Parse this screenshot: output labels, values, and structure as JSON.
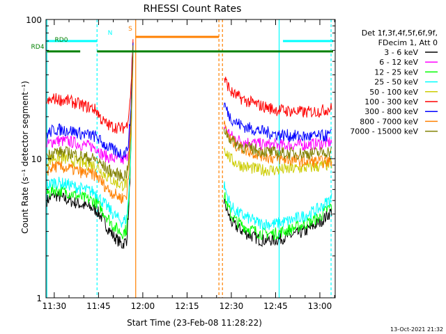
{
  "chart_data": {
    "type": "line",
    "title": "RHESSI Count Rates",
    "xlabel": "Start Time (23-Feb-08 11:28:22)",
    "ylabel": "Count Rate (s⁻¹ detector segment⁻¹)",
    "x_unit": "minutes past 11:00 UT",
    "xlim": [
      87.2,
      185.2
    ],
    "ylim": [
      1,
      100
    ],
    "y_scale": "log",
    "x_ticks": [
      {
        "value": 90,
        "label": "11:30"
      },
      {
        "value": 105,
        "label": "11:45"
      },
      {
        "value": 120,
        "label": "12:00"
      },
      {
        "value": 135,
        "label": "12:15"
      },
      {
        "value": 150,
        "label": "12:30"
      },
      {
        "value": 165,
        "label": "12:45"
      },
      {
        "value": 180,
        "label": "13:00"
      }
    ],
    "y_ticks": [
      {
        "value": 1,
        "label": "1"
      },
      {
        "value": 10,
        "label": "10"
      },
      {
        "value": 100,
        "label": "100"
      }
    ],
    "grid": false,
    "legend": {
      "placement": "right",
      "header": [
        "Det 1f,3f,4f,5f,6f,9f,",
        "FDecim 1, Att 0"
      ]
    },
    "timestamp": "13-Oct-2021 21:32",
    "series": [
      {
        "name": "3 - 6 keV",
        "color": "#000000",
        "x": [
          87.5,
          90,
          95,
          100,
          103,
          104.5,
          106,
          108,
          110,
          113,
          114.5,
          115.3,
          116,
          116.7,
          147.5,
          149,
          150,
          152,
          155,
          160,
          165,
          170,
          175,
          180,
          182,
          184
        ],
        "y": [
          5.0,
          5.5,
          5.0,
          4.6,
          4.4,
          4.2,
          3.8,
          3.2,
          2.8,
          2.4,
          2.6,
          4.5,
          12,
          70,
          5.0,
          4.0,
          3.5,
          3.2,
          2.9,
          2.6,
          2.6,
          2.8,
          3.0,
          3.5,
          3.8,
          4.2
        ]
      },
      {
        "name": "6 - 12 keV",
        "color": "#ff00ff",
        "x": [
          87.5,
          90,
          95,
          100,
          103,
          104.5,
          106,
          108,
          110,
          113,
          114.5,
          115.3,
          116,
          116.7,
          147.5,
          149,
          150,
          152,
          155,
          160,
          165,
          170,
          175,
          180,
          182,
          184
        ],
        "y": [
          12.5,
          13.5,
          13.3,
          12.5,
          12.2,
          12.0,
          10.8,
          10.3,
          10.0,
          9.7,
          10.0,
          12.5,
          20,
          60,
          17.0,
          15.5,
          14.5,
          13.7,
          13.2,
          12.7,
          12.5,
          12.5,
          12.6,
          12.8,
          13.0,
          13.2
        ]
      },
      {
        "name": "12 - 25 keV",
        "color": "#00ff00",
        "x": [
          87.5,
          90,
          95,
          100,
          103,
          104.5,
          106,
          108,
          110,
          113,
          114.5,
          115.3,
          116,
          116.7,
          147.5,
          149,
          150,
          152,
          155,
          160,
          165,
          170,
          175,
          180,
          182,
          184
        ],
        "y": [
          5.6,
          6.0,
          5.7,
          5.2,
          5.0,
          4.8,
          4.3,
          3.8,
          3.3,
          2.9,
          3.1,
          5.0,
          13,
          65,
          5.5,
          4.4,
          3.9,
          3.5,
          3.2,
          2.9,
          2.9,
          3.1,
          3.4,
          3.8,
          4.2,
          4.6
        ]
      },
      {
        "name": "25 - 50 keV",
        "color": "#00ffff",
        "x": [
          87.5,
          90,
          95,
          100,
          103,
          104.5,
          106,
          108,
          110,
          113,
          114.5,
          115.3,
          116,
          116.7,
          147.5,
          149,
          150,
          152,
          155,
          160,
          165,
          170,
          175,
          180,
          182,
          184
        ],
        "y": [
          6.4,
          6.8,
          6.5,
          6.0,
          5.8,
          5.6,
          5.0,
          4.5,
          4.0,
          3.5,
          3.7,
          5.7,
          14,
          62,
          6.5,
          5.1,
          4.5,
          4.1,
          3.8,
          3.4,
          3.4,
          3.6,
          3.9,
          4.4,
          4.8,
          5.2
        ]
      },
      {
        "name": "50 - 100 keV",
        "color": "#cccc00",
        "x": [
          87.5,
          90,
          95,
          100,
          103,
          104.5,
          106,
          108,
          110,
          113,
          114.5,
          115.3,
          116,
          116.7,
          147.5,
          149,
          150,
          152,
          155,
          160,
          165,
          170,
          175,
          180,
          182,
          184
        ],
        "y": [
          9.5,
          10.2,
          9.9,
          9.2,
          9.0,
          8.8,
          8.1,
          7.4,
          6.9,
          6.4,
          6.7,
          9.0,
          18,
          58,
          12.0,
          10.5,
          9.8,
          9.2,
          8.7,
          8.3,
          8.3,
          8.4,
          8.6,
          8.8,
          9.0,
          9.2
        ]
      },
      {
        "name": "100 - 300 keV",
        "color": "#ff0000",
        "x": [
          87.5,
          90,
          95,
          100,
          103,
          104.5,
          106,
          108,
          110,
          113,
          114.5,
          115.3,
          116,
          116.7,
          147.5,
          149,
          150,
          152,
          155,
          160,
          165,
          170,
          175,
          180,
          182,
          184
        ],
        "y": [
          25,
          27,
          26,
          24,
          23,
          22,
          19,
          17.5,
          17.0,
          16.5,
          17.2,
          22,
          32,
          75,
          38,
          33,
          30,
          28,
          26,
          24,
          22.5,
          22,
          21.5,
          22,
          22.5,
          23
        ]
      },
      {
        "name": "300 - 800 keV",
        "color": "#0000ff",
        "x": [
          87.5,
          90,
          95,
          100,
          103,
          104.5,
          106,
          108,
          110,
          113,
          114.5,
          115.3,
          116,
          116.7,
          147.5,
          149,
          150,
          152,
          155,
          160,
          165,
          170,
          175,
          180,
          182,
          184
        ],
        "y": [
          15,
          16.2,
          16.0,
          15.0,
          14.6,
          14.3,
          13.1,
          12.2,
          11.5,
          10.8,
          11.2,
          14.0,
          24,
          66,
          25,
          21,
          19.5,
          18.0,
          16.8,
          15.8,
          15.0,
          14.6,
          14.4,
          14.5,
          14.6,
          14.8
        ]
      },
      {
        "name": "800 - 7000 keV",
        "color": "#ff8000",
        "x": [
          87.5,
          90,
          95,
          100,
          103,
          104.5,
          106,
          108,
          110,
          113,
          114.5,
          115.3,
          116,
          116.7,
          147.5,
          149,
          150,
          152,
          155,
          160,
          165,
          170,
          175,
          180,
          182,
          184
        ],
        "y": [
          8.2,
          8.8,
          8.5,
          7.9,
          7.7,
          7.5,
          6.8,
          6.1,
          5.6,
          5.2,
          5.5,
          7.8,
          16,
          56,
          17.5,
          14.5,
          13.5,
          12.3,
          11.5,
          10.6,
          10.0,
          9.8,
          9.6,
          9.5,
          9.5,
          9.6
        ]
      },
      {
        "name": "7000 - 15000 keV",
        "color": "#808000",
        "x": [
          87.5,
          90,
          95,
          100,
          103,
          104.5,
          106,
          108,
          110,
          113,
          114.5,
          115.3,
          116,
          116.7,
          147.5,
          149,
          150,
          152,
          155,
          160,
          165,
          170,
          175,
          180,
          182,
          184
        ],
        "y": [
          10.5,
          11.2,
          11.0,
          10.3,
          10.0,
          9.8,
          9.0,
          8.4,
          7.9,
          7.5,
          7.8,
          10.2,
          19,
          60,
          16.5,
          14.5,
          13.6,
          12.7,
          12.0,
          11.4,
          11.0,
          10.9,
          10.9,
          11.0,
          11.2,
          11.3
        ]
      }
    ],
    "state_bars": [
      {
        "label": "",
        "color": "#00ffff",
        "level": 70,
        "segments": [
          [
            87.5,
            104.5
          ],
          [
            167.5,
            184.5
          ]
        ]
      },
      {
        "label": "N",
        "color": "#00ffff",
        "level": 70,
        "segments": []
      },
      {
        "label": "RD0",
        "color": "#008000",
        "level": 64,
        "segments": []
      },
      {
        "label": "RD4",
        "color": "#008000",
        "level": 59,
        "segments": [
          [
            87.5,
            98.8
          ],
          [
            104.5,
            184.5
          ]
        ]
      },
      {
        "label": "S",
        "color": "#ff8000",
        "level": 75,
        "segments": [
          [
            117.7,
            145.8
          ]
        ]
      }
    ],
    "vlines": [
      {
        "x": 87.5,
        "color": "#00ffff",
        "dash": false
      },
      {
        "x": 104.5,
        "color": "#00ffff",
        "dash": true
      },
      {
        "x": 117.6,
        "color": "#ff8000",
        "dash": false
      },
      {
        "x": 145.8,
        "color": "#ff8000",
        "dash": true
      },
      {
        "x": 147.0,
        "color": "#ff8000",
        "dash": true
      },
      {
        "x": 166.2,
        "color": "#00ffff",
        "dash": false
      },
      {
        "x": 183.8,
        "color": "#00ffff",
        "dash": true
      }
    ]
  }
}
